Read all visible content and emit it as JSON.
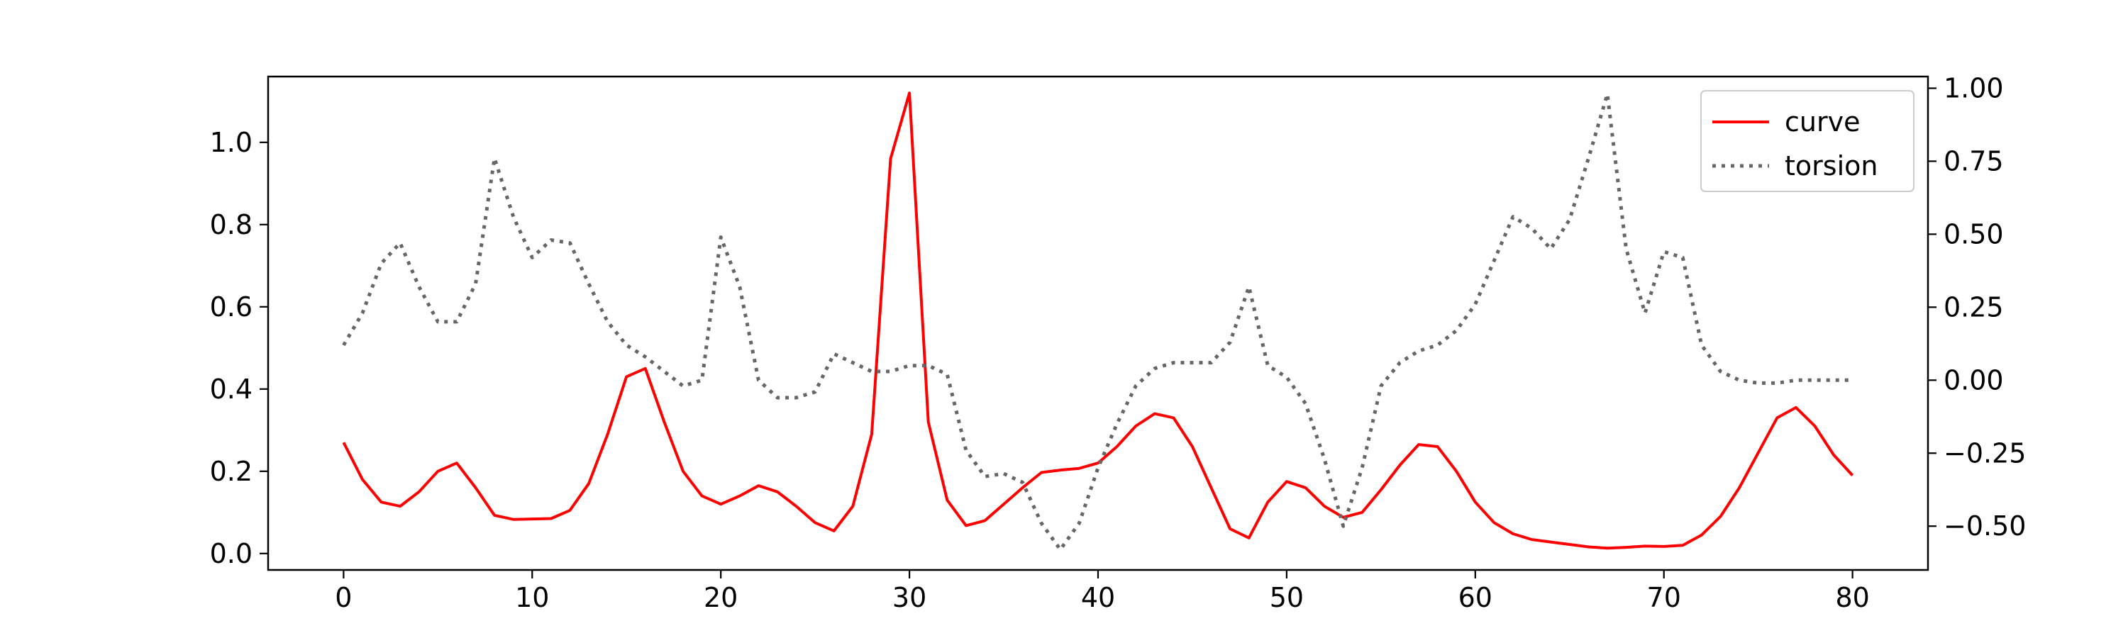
{
  "chart_data": {
    "type": "line",
    "title": "",
    "xlabel": "",
    "ylabel": "",
    "y2label": "",
    "grid": false,
    "legend_position": "top-right",
    "xlim": [
      -4,
      84
    ],
    "ylim": [
      -0.04,
      1.16
    ],
    "y2lim": [
      -0.65,
      1.04
    ],
    "x_ticks": [
      0,
      10,
      20,
      30,
      40,
      50,
      60,
      70,
      80
    ],
    "y_ticks": [
      0.0,
      0.2,
      0.4,
      0.6,
      0.8,
      1.0
    ],
    "y2_ticks": [
      -0.5,
      -0.25,
      0.0,
      0.25,
      0.5,
      0.75,
      1.0
    ],
    "x_tick_labels": [
      "0",
      "10",
      "20",
      "30",
      "40",
      "50",
      "60",
      "70",
      "80"
    ],
    "y_tick_labels": [
      "0.0",
      "0.2",
      "0.4",
      "0.6",
      "0.8",
      "1.0"
    ],
    "y2_tick_labels": [
      "−0.50",
      "−0.25",
      "0.00",
      "0.25",
      "0.50",
      "0.75",
      "1.00"
    ],
    "series": [
      {
        "name": "curve",
        "axis": "left",
        "color": "#ff0000",
        "style": "solid",
        "x": [
          0,
          1,
          2,
          3,
          4,
          5,
          6,
          7,
          8,
          9,
          10,
          11,
          12,
          13,
          14,
          15,
          16,
          17,
          18,
          19,
          20,
          21,
          22,
          23,
          24,
          25,
          26,
          27,
          28,
          29,
          30,
          31,
          32,
          33,
          34,
          35,
          36,
          37,
          38,
          39,
          40,
          41,
          42,
          43,
          44,
          45,
          46,
          47,
          48,
          49,
          50,
          51,
          52,
          53,
          54,
          55,
          56,
          57,
          58,
          59,
          60,
          61,
          62,
          63,
          64,
          65,
          66,
          67,
          68,
          69,
          70,
          71,
          72,
          73,
          74,
          75,
          76,
          77,
          78,
          79,
          80
        ],
        "values": [
          0.27,
          0.18,
          0.125,
          0.115,
          0.15,
          0.2,
          0.22,
          0.16,
          0.093,
          0.083,
          0.084,
          0.085,
          0.105,
          0.17,
          0.29,
          0.43,
          0.45,
          0.32,
          0.2,
          0.14,
          0.12,
          0.14,
          0.165,
          0.15,
          0.115,
          0.075,
          0.055,
          0.115,
          0.29,
          0.96,
          1.12,
          0.32,
          0.13,
          0.068,
          0.08,
          0.12,
          0.16,
          0.197,
          0.203,
          0.207,
          0.22,
          0.26,
          0.31,
          0.34,
          0.33,
          0.26,
          0.16,
          0.06,
          0.038,
          0.125,
          0.175,
          0.16,
          0.115,
          0.088,
          0.1,
          0.155,
          0.215,
          0.265,
          0.26,
          0.2,
          0.125,
          0.075,
          0.048,
          0.034,
          0.028,
          0.022,
          0.016,
          0.013,
          0.015,
          0.018,
          0.017,
          0.02,
          0.045,
          0.09,
          0.16,
          0.245,
          0.33,
          0.355,
          0.31,
          0.24,
          0.19
        ]
      },
      {
        "name": "torsion",
        "axis": "right",
        "color": "#666666",
        "style": "dotted",
        "x": [
          0,
          1,
          2,
          3,
          4,
          5,
          6,
          7,
          8,
          9,
          10,
          11,
          12,
          13,
          14,
          15,
          16,
          17,
          18,
          19,
          20,
          21,
          22,
          23,
          24,
          25,
          26,
          27,
          28,
          29,
          30,
          31,
          32,
          33,
          34,
          35,
          36,
          37,
          38,
          39,
          40,
          41,
          42,
          43,
          44,
          45,
          46,
          47,
          48,
          49,
          50,
          51,
          52,
          53,
          54,
          55,
          56,
          57,
          58,
          59,
          60,
          61,
          62,
          63,
          64,
          65,
          66,
          67,
          68,
          69,
          70,
          71,
          72,
          73,
          74,
          75,
          76,
          77,
          78,
          79,
          80
        ],
        "values": [
          0.12,
          0.23,
          0.4,
          0.47,
          0.32,
          0.2,
          0.2,
          0.33,
          0.76,
          0.56,
          0.42,
          0.48,
          0.47,
          0.33,
          0.2,
          0.12,
          0.08,
          0.03,
          -0.02,
          0.0,
          0.49,
          0.32,
          0.0,
          -0.06,
          -0.06,
          -0.04,
          0.09,
          0.06,
          0.03,
          0.03,
          0.05,
          0.05,
          0.02,
          -0.24,
          -0.33,
          -0.32,
          -0.35,
          -0.49,
          -0.58,
          -0.49,
          -0.3,
          -0.15,
          -0.02,
          0.04,
          0.06,
          0.06,
          0.06,
          0.13,
          0.32,
          0.05,
          0.01,
          -0.08,
          -0.27,
          -0.5,
          -0.3,
          -0.02,
          0.06,
          0.1,
          0.12,
          0.17,
          0.26,
          0.41,
          0.56,
          0.52,
          0.45,
          0.55,
          0.76,
          0.98,
          0.45,
          0.23,
          0.44,
          0.42,
          0.12,
          0.03,
          0.0,
          -0.01,
          -0.01,
          0.0,
          0.0,
          0.0,
          0.0
        ]
      }
    ]
  }
}
